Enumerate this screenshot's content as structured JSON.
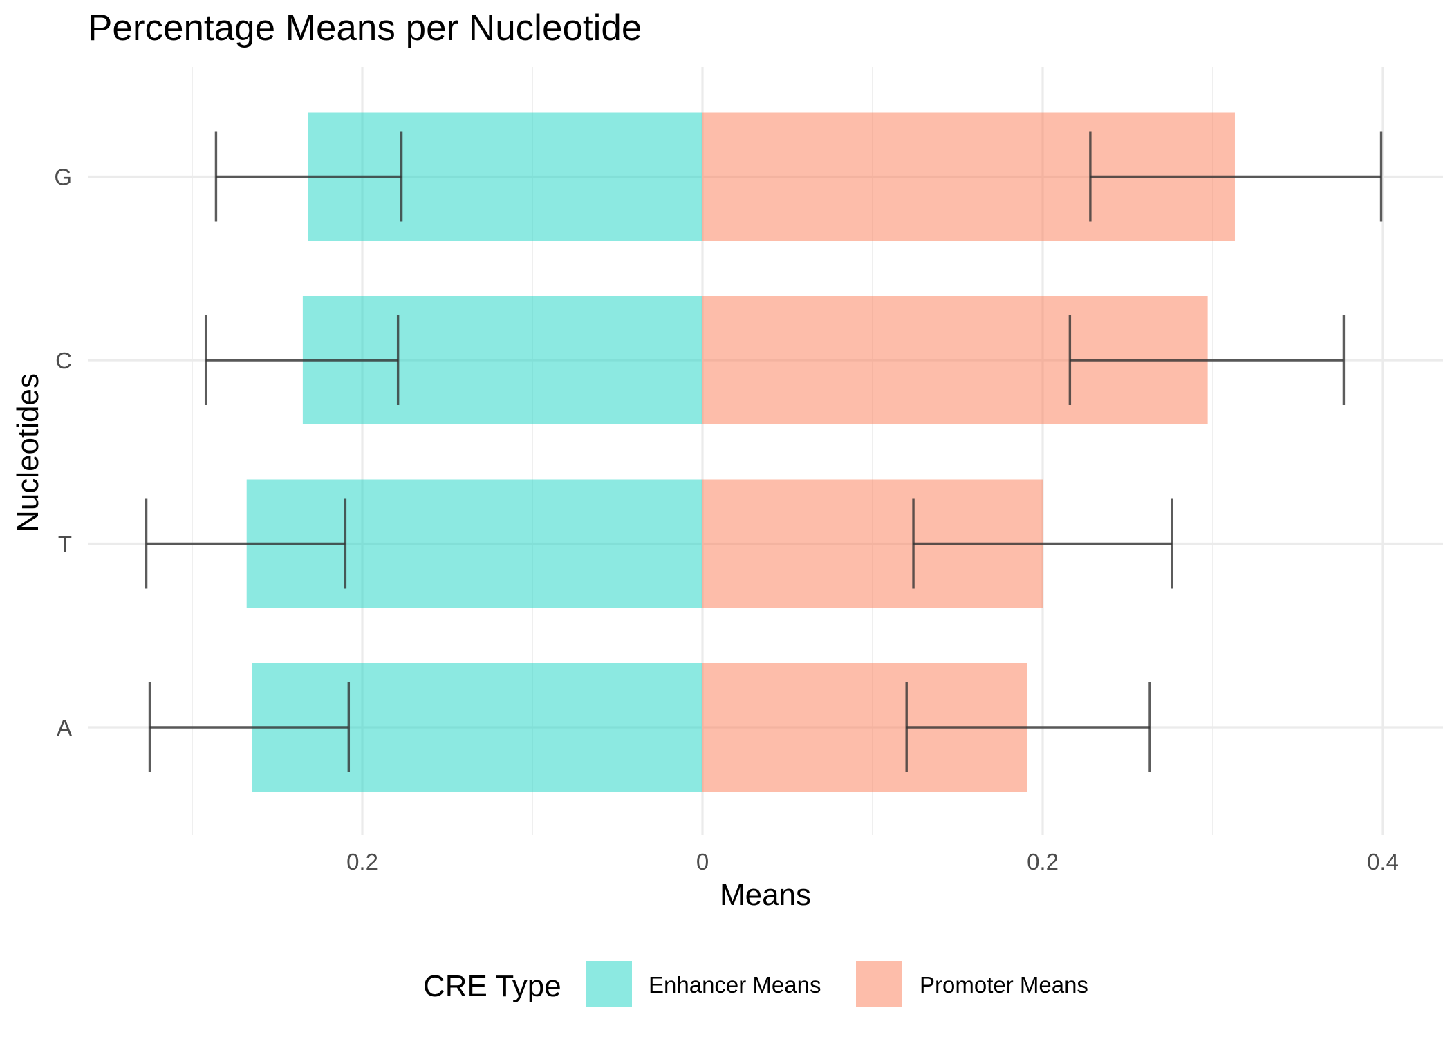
{
  "chart_data": {
    "type": "bar",
    "orientation": "horizontal-diverging",
    "title": "Percentage Means per Nucleotide",
    "xlabel": "Means",
    "ylabel": "Nucleotides",
    "categories": [
      "A",
      "T",
      "C",
      "G"
    ],
    "xlim": [
      -0.36,
      0.435
    ],
    "x_ticks": [
      {
        "value": -0.2,
        "label": "0.2"
      },
      {
        "value": 0,
        "label": "0"
      },
      {
        "value": 0.2,
        "label": "0.2"
      },
      {
        "value": 0.4,
        "label": "0.4"
      }
    ],
    "x_minor_gridlines": [
      -0.3,
      -0.1,
      0.1,
      0.3
    ],
    "grid": true,
    "legend": {
      "title": "CRE Type",
      "position": "bottom"
    },
    "series": [
      {
        "name": "Enhancer Means",
        "color": "#19d3c3",
        "values": [
          -0.265,
          -0.268,
          -0.235,
          -0.232
        ],
        "error_bars": [
          [
            -0.325,
            -0.208
          ],
          [
            -0.327,
            -0.21
          ],
          [
            -0.292,
            -0.179
          ],
          [
            -0.286,
            -0.177
          ]
        ]
      },
      {
        "name": "Promoter Means",
        "color": "#fc7c56",
        "values": [
          0.191,
          0.2,
          0.297,
          0.313
        ],
        "error_bars": [
          [
            0.12,
            0.263
          ],
          [
            0.124,
            0.276
          ],
          [
            0.216,
            0.377
          ],
          [
            0.228,
            0.399
          ]
        ]
      }
    ],
    "bar_opacity": 0.5,
    "error_bar_color": "#333333"
  }
}
